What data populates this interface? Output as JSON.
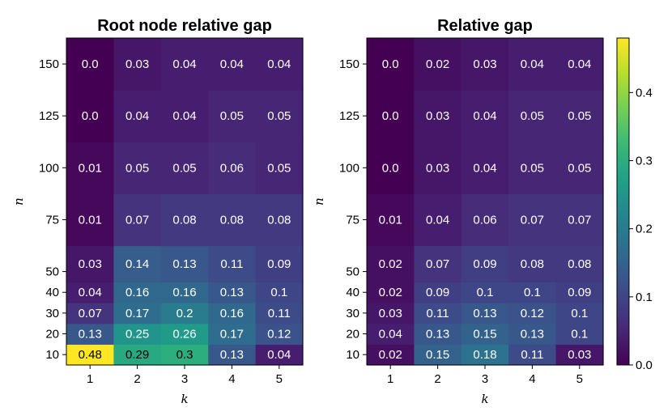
{
  "chart_data": [
    {
      "type": "heatmap",
      "title": "Root node relative gap",
      "xlabel": "k",
      "ylabel": "n",
      "x_categories": [
        "1",
        "2",
        "3",
        "4",
        "5"
      ],
      "y_categories": [
        "10",
        "20",
        "30",
        "40",
        "50",
        "75",
        "100",
        "125",
        "150"
      ],
      "values": [
        [
          0.48,
          0.29,
          0.3,
          0.13,
          0.04
        ],
        [
          0.13,
          0.25,
          0.26,
          0.17,
          0.12
        ],
        [
          0.07,
          0.17,
          0.2,
          0.16,
          0.11
        ],
        [
          0.04,
          0.16,
          0.16,
          0.13,
          0.1
        ],
        [
          0.03,
          0.14,
          0.13,
          0.11,
          0.09
        ],
        [
          0.01,
          0.07,
          0.08,
          0.08,
          0.08
        ],
        [
          0.01,
          0.05,
          0.05,
          0.06,
          0.05
        ],
        [
          0.0,
          0.04,
          0.04,
          0.05,
          0.05
        ],
        [
          0.0,
          0.03,
          0.04,
          0.04,
          0.04
        ]
      ],
      "labels": [
        [
          "0.48",
          "0.29",
          "0.3",
          "0.13",
          "0.04"
        ],
        [
          "0.13",
          "0.25",
          "0.26",
          "0.17",
          "0.12"
        ],
        [
          "0.07",
          "0.17",
          "0.2",
          "0.16",
          "0.11"
        ],
        [
          "0.04",
          "0.16",
          "0.16",
          "0.13",
          "0.1"
        ],
        [
          "0.03",
          "0.14",
          "0.13",
          "0.11",
          "0.09"
        ],
        [
          "0.01",
          "0.07",
          "0.08",
          "0.08",
          "0.08"
        ],
        [
          "0.01",
          "0.05",
          "0.05",
          "0.06",
          "0.05"
        ],
        [
          "0.0",
          "0.04",
          "0.04",
          "0.05",
          "0.05"
        ],
        [
          "0.0",
          "0.03",
          "0.04",
          "0.04",
          "0.04"
        ]
      ]
    },
    {
      "type": "heatmap",
      "title": "Relative gap",
      "xlabel": "k",
      "ylabel": "n",
      "x_categories": [
        "1",
        "2",
        "3",
        "4",
        "5"
      ],
      "y_categories": [
        "10",
        "20",
        "30",
        "40",
        "50",
        "75",
        "100",
        "125",
        "150"
      ],
      "values": [
        [
          0.02,
          0.15,
          0.18,
          0.11,
          0.03
        ],
        [
          0.04,
          0.13,
          0.15,
          0.13,
          0.1
        ],
        [
          0.03,
          0.11,
          0.13,
          0.12,
          0.1
        ],
        [
          0.02,
          0.09,
          0.1,
          0.1,
          0.09
        ],
        [
          0.02,
          0.07,
          0.09,
          0.08,
          0.08
        ],
        [
          0.01,
          0.04,
          0.06,
          0.07,
          0.07
        ],
        [
          0.0,
          0.03,
          0.04,
          0.05,
          0.05
        ],
        [
          0.0,
          0.03,
          0.04,
          0.05,
          0.05
        ],
        [
          0.0,
          0.02,
          0.03,
          0.04,
          0.04
        ]
      ],
      "labels": [
        [
          "0.02",
          "0.15",
          "0.18",
          "0.11",
          "0.03"
        ],
        [
          "0.04",
          "0.13",
          "0.15",
          "0.13",
          "0.1"
        ],
        [
          "0.03",
          "0.11",
          "0.13",
          "0.12",
          "0.1"
        ],
        [
          "0.02",
          "0.09",
          "0.1",
          "0.1",
          "0.09"
        ],
        [
          "0.02",
          "0.07",
          "0.09",
          "0.08",
          "0.08"
        ],
        [
          "0.01",
          "0.04",
          "0.06",
          "0.07",
          "0.07"
        ],
        [
          "0.0",
          "0.03",
          "0.04",
          "0.05",
          "0.05"
        ],
        [
          "0.0",
          "0.03",
          "0.04",
          "0.05",
          "0.05"
        ],
        [
          "0.0",
          "0.02",
          "0.03",
          "0.04",
          "0.04"
        ]
      ]
    }
  ],
  "colorbar": {
    "colormap": "viridis",
    "range": [
      0.0,
      0.48
    ],
    "ticks": [
      0.0,
      0.1,
      0.2,
      0.3,
      0.4
    ],
    "tick_labels": [
      "0.0",
      "0.1",
      "0.2",
      "0.3",
      "0.4"
    ]
  }
}
